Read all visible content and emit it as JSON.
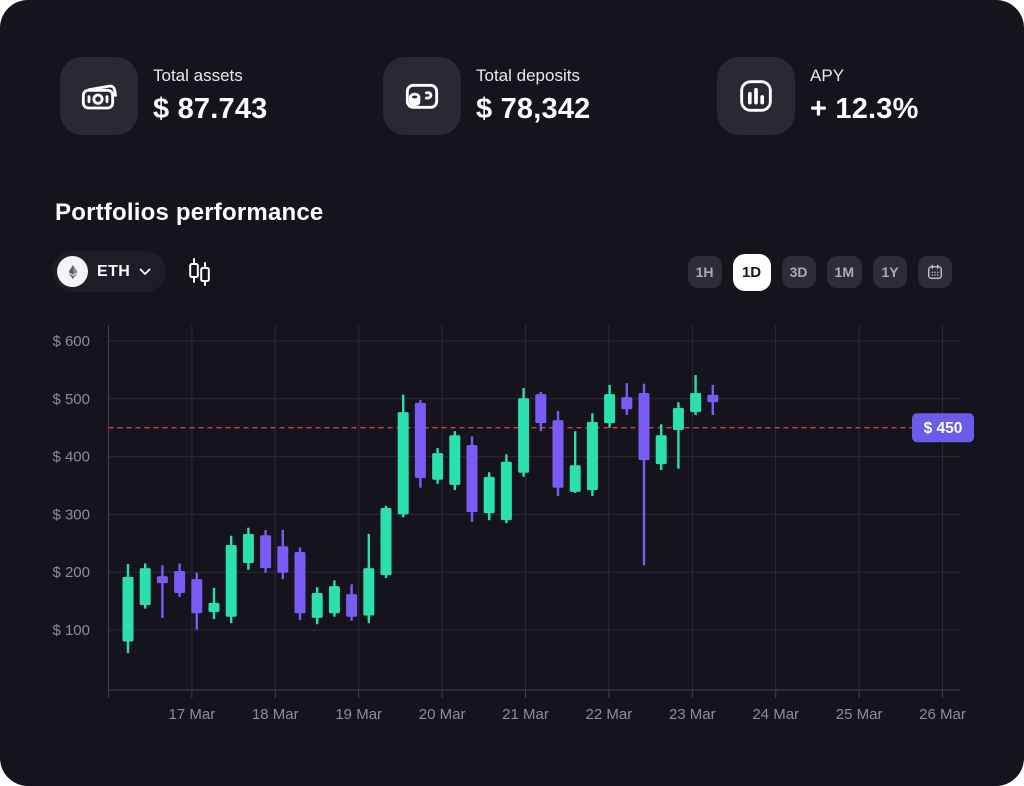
{
  "stats": [
    {
      "icon": "banknotes-icon",
      "label": "Total assets",
      "value": "$ 87.743"
    },
    {
      "icon": "wallet-icon",
      "label": "Total deposits",
      "value": "$ 78,342"
    },
    {
      "icon": "bar-chart-icon",
      "label": "APY",
      "value": "+ 12.3%"
    }
  ],
  "section": {
    "title": "Portfolios performance"
  },
  "asset_selector": {
    "label": "ETH",
    "logo": "ethereum-icon"
  },
  "timeframes": {
    "options": [
      "1H",
      "1D",
      "3D",
      "1M",
      "1Y"
    ],
    "selected": "1D",
    "calendar_button": "calendar-icon"
  },
  "colors": {
    "background": "#15131C",
    "tile": "#2A2834",
    "grid": "#2C2A34",
    "axis": "#43414B",
    "tick_label": "#8E8C95",
    "bullish": "#2BE0AE",
    "bearish": "#7B5BF5",
    "threshold_line": "#E13B41",
    "threshold_badge": "#6C5AE8"
  },
  "chart_data": {
    "type": "candlestick",
    "title": "Portfolios performance",
    "x_tick_labels": [
      "17 Mar",
      "18 Mar",
      "19 Mar",
      "20 Mar",
      "21 Mar",
      "22 Mar",
      "23 Mar",
      "24 Mar",
      "25 Mar",
      "26 Mar"
    ],
    "y_ticks": [
      100,
      200,
      300,
      400,
      500,
      600
    ],
    "y_tick_labels": [
      "$ 100",
      "$ 200",
      "$ 300",
      "$ 400",
      "$ 500",
      "$ 600"
    ],
    "ylim": [
      0,
      640
    ],
    "grid": true,
    "threshold_line": {
      "value": 450,
      "label": "$ 450",
      "style": "dashed"
    },
    "candles": [
      {
        "open": 80,
        "high": 214,
        "low": 60,
        "close": 192
      },
      {
        "open": 143,
        "high": 215,
        "low": 137,
        "close": 207
      },
      {
        "open": 193,
        "high": 212,
        "low": 121,
        "close": 181
      },
      {
        "open": 202,
        "high": 215,
        "low": 157,
        "close": 164
      },
      {
        "open": 188,
        "high": 199,
        "low": 101,
        "close": 129
      },
      {
        "open": 131,
        "high": 173,
        "low": 119,
        "close": 147
      },
      {
        "open": 123,
        "high": 263,
        "low": 112,
        "close": 247
      },
      {
        "open": 216,
        "high": 277,
        "low": 204,
        "close": 266
      },
      {
        "open": 264,
        "high": 273,
        "low": 199,
        "close": 207
      },
      {
        "open": 245,
        "high": 273,
        "low": 188,
        "close": 199
      },
      {
        "open": 235,
        "high": 243,
        "low": 117,
        "close": 129
      },
      {
        "open": 121,
        "high": 174,
        "low": 110,
        "close": 164
      },
      {
        "open": 129,
        "high": 186,
        "low": 123,
        "close": 176
      },
      {
        "open": 162,
        "high": 179,
        "low": 116,
        "close": 123
      },
      {
        "open": 125,
        "high": 266,
        "low": 112,
        "close": 207
      },
      {
        "open": 195,
        "high": 315,
        "low": 190,
        "close": 311
      },
      {
        "open": 300,
        "high": 507,
        "low": 295,
        "close": 477
      },
      {
        "open": 493,
        "high": 498,
        "low": 346,
        "close": 363
      },
      {
        "open": 360,
        "high": 415,
        "low": 353,
        "close": 406
      },
      {
        "open": 351,
        "high": 444,
        "low": 342,
        "close": 437
      },
      {
        "open": 420,
        "high": 435,
        "low": 287,
        "close": 304
      },
      {
        "open": 302,
        "high": 373,
        "low": 290,
        "close": 365
      },
      {
        "open": 290,
        "high": 404,
        "low": 285,
        "close": 391
      },
      {
        "open": 372,
        "high": 519,
        "low": 365,
        "close": 501
      },
      {
        "open": 508,
        "high": 512,
        "low": 444,
        "close": 458
      },
      {
        "open": 463,
        "high": 479,
        "low": 332,
        "close": 346
      },
      {
        "open": 339,
        "high": 444,
        "low": 337,
        "close": 385
      },
      {
        "open": 342,
        "high": 475,
        "low": 332,
        "close": 460
      },
      {
        "open": 458,
        "high": 524,
        "low": 450,
        "close": 508
      },
      {
        "open": 503,
        "high": 527,
        "low": 472,
        "close": 482
      },
      {
        "open": 510,
        "high": 526,
        "low": 212,
        "close": 394
      },
      {
        "open": 387,
        "high": 456,
        "low": 377,
        "close": 437
      },
      {
        "open": 446,
        "high": 494,
        "low": 379,
        "close": 484
      },
      {
        "open": 477,
        "high": 541,
        "low": 472,
        "close": 510
      },
      {
        "open": 507,
        "high": 524,
        "low": 472,
        "close": 494
      }
    ]
  }
}
